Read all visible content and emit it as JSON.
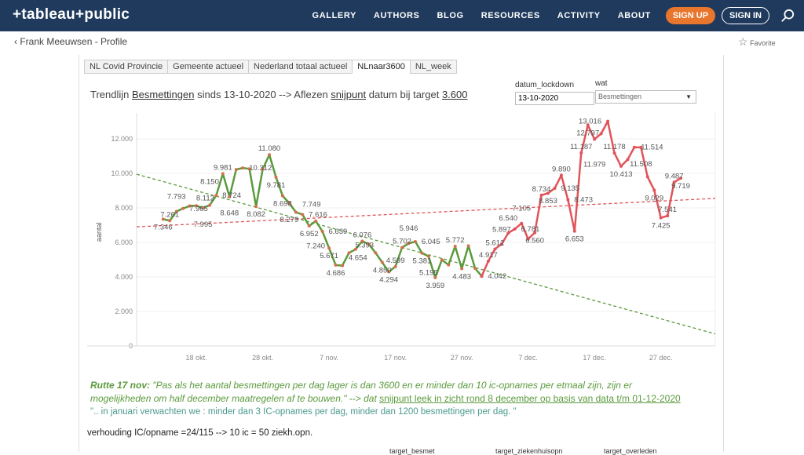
{
  "nav": {
    "logo": "+tableau+public",
    "items": [
      "GALLERY",
      "AUTHORS",
      "BLOG",
      "RESOURCES",
      "ACTIVITY",
      "ABOUT"
    ],
    "sign_up": "SIGN UP",
    "sign_in": "SIGN IN"
  },
  "sub": {
    "back": "Frank Meeuwsen - Profile",
    "favorite": "Favorite"
  },
  "tabs": [
    "NL Covid Provincie",
    "Gemeente actueel",
    "Nederland totaal actueel",
    "NLnaar3600",
    "NL_week"
  ],
  "title": {
    "p1": "Trendlijn ",
    "p2": "Besmettingen",
    "p3": " sinds 13-10-2020 --> Aflezen ",
    "p4": "snijpunt",
    "p5": " datum bij target ",
    "p6": "3.600"
  },
  "filters": {
    "date_label": "datum_lockdown",
    "date_value": "13-10-2020",
    "wat_label": "wat",
    "wat_value": "Besmettingen"
  },
  "chart_data": {
    "type": "line",
    "ylabel": "aantal",
    "ylim": [
      0,
      13500
    ],
    "yticks": [
      0,
      2000,
      4000,
      6000,
      8000,
      10000,
      12000
    ],
    "ytick_labels": [
      "0",
      "2.000",
      "4.000",
      "6.000",
      "8.000",
      "10.000",
      "12.000"
    ],
    "xticks": [
      {
        "day": 5,
        "label": "18 okt."
      },
      {
        "day": 15,
        "label": "28 okt."
      },
      {
        "day": 25,
        "label": "7 nov."
      },
      {
        "day": 35,
        "label": "17 nov."
      },
      {
        "day": 45,
        "label": "27 nov."
      },
      {
        "day": 55,
        "label": "7 dec."
      },
      {
        "day": 65,
        "label": "17 dec."
      },
      {
        "day": 75,
        "label": "27 dec."
      }
    ],
    "start_date": "13-10-2020",
    "xlim": [
      -4,
      83.2
    ],
    "series": [
      {
        "name": "voor",
        "color": "#5a9a3c",
        "start_day": 0,
        "values": [
          7346,
          7261,
          7793,
          7965,
          8112,
          8124,
          7995,
          8150,
          8724,
          9981,
          8648,
          10221,
          10312,
          10264,
          8082,
          10245,
          11080,
          9781,
          8698,
          8279,
          7749,
          7616,
          6952,
          7240,
          6639,
          5671,
          4686,
          4654,
          5393,
          5600,
          6076,
          5900,
          5400,
          4850,
          4294,
          4599,
          5702,
          5946,
          6045,
          5381,
          5195,
          3959,
          4990,
          4700,
          5772,
          4483,
          5800,
          4500,
          4042
        ],
        "labeled": [
          0,
          1,
          2,
          3,
          4,
          6,
          7,
          8,
          9,
          10,
          12,
          14,
          16,
          17,
          18,
          19,
          20,
          21,
          22,
          23,
          24,
          25,
          26,
          27,
          28,
          30,
          33,
          34,
          35,
          36,
          37,
          38,
          39,
          40,
          41,
          44,
          45,
          48
        ]
      },
      {
        "name": "na",
        "color": "#e0545a",
        "start_day": 48,
        "values": [
          4042,
          4917,
          5612,
          5897,
          6540,
          6781,
          7105,
          6200,
          6560,
          8734,
          8853,
          9135,
          9890,
          8473,
          6653,
          11187,
          12797,
          11979,
          12300,
          13016,
          11178,
          10413,
          10800,
          11514,
          11508,
          9800,
          9029,
          7425,
          7541,
          9487,
          9719
        ],
        "labeled": [
          1,
          2,
          3,
          4,
          5,
          6,
          8,
          9,
          10,
          11,
          12,
          13,
          14,
          15,
          16,
          17,
          19,
          20,
          21,
          23,
          24,
          26,
          27,
          28,
          29,
          30
        ]
      }
    ],
    "trendlines": [
      {
        "name": "trend voor",
        "color": "#5a9a3c",
        "from": [
          -4,
          9950
        ],
        "to": [
          83.2,
          700
        ]
      },
      {
        "name": "trend na",
        "color": "#e0545a",
        "from": [
          -4,
          6900
        ],
        "to": [
          83.2,
          8550
        ]
      }
    ]
  },
  "notes": {
    "q1a": "Rutte 17 nov:",
    "q1b": " \"Pas als het aantal besmettingen per dag lager is dan 3600 en er minder dan 10 ic-opnames per etmaal zijn, zijn er",
    "q2a": "mogelijkheden om half december  maatregelen af te bouwen.\"  --> dat ",
    "q2b": "snijpunt leek in zicht rond 8 december op basis van data t/m 01-12-2020",
    "q3": "\".. in januari verwachten  we : minder dan 3 IC-opnames per dag, minder dan 1200 besmettingen per dag. \"",
    "ratio": "verhouding IC/opname =24/115 --> 10 ic = 50 ziekh.opn.",
    "col1": "target_besmet",
    "col2": "target_ziekenhuisopn",
    "col3": "target_overleden"
  }
}
